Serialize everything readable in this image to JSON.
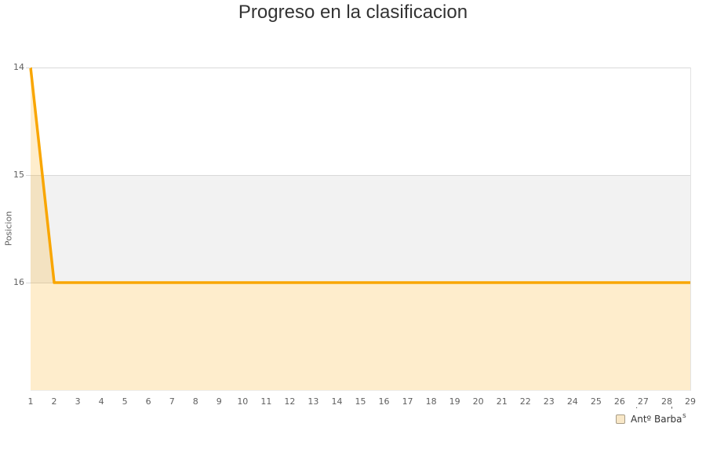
{
  "header": {
    "title": "Progreso en la clasificacion"
  },
  "chart_data": {
    "type": "area",
    "title": "Progreso en la clasificacion",
    "xlabel": "",
    "ylabel": "Posicion",
    "x": [
      1,
      2,
      3,
      4,
      5,
      6,
      7,
      8,
      9,
      10,
      11,
      12,
      13,
      14,
      15,
      16,
      17,
      18,
      19,
      20,
      21,
      22,
      23,
      24,
      25,
      26,
      27,
      28,
      29
    ],
    "series": [
      {
        "name": "Antº Barba",
        "values": [
          14,
          16,
          16,
          16,
          16,
          16,
          16,
          16,
          16,
          16,
          16,
          16,
          16,
          16,
          16,
          16,
          16,
          16,
          16,
          16,
          16,
          16,
          16,
          16,
          16,
          16,
          16,
          16,
          16
        ]
      }
    ],
    "ylim": [
      14,
      17
    ],
    "y_ticks": [
      14,
      15,
      16
    ],
    "x_ticks": [
      1,
      2,
      3,
      4,
      5,
      6,
      7,
      8,
      9,
      10,
      11,
      12,
      13,
      14,
      15,
      16,
      17,
      18,
      19,
      20,
      21,
      22,
      23,
      24,
      25,
      26,
      27,
      28,
      29
    ],
    "y_axis_reversed": true,
    "alternate_band": {
      "from": 15,
      "to": 16
    },
    "grid": "horizontal",
    "legend_position": "bottom-right"
  },
  "legend": {
    "label": "Antº Barba",
    "dot_mark": "·",
    "apostrophe_mark": "'",
    "suffix": "s"
  },
  "colors": {
    "line": "#F9A602",
    "area_fill": "#F9A602",
    "area_fill_opacity": "0.2",
    "band": "#F2F2F2",
    "grid": "#D9D9D9",
    "plot_border": "#E3E3E3",
    "axis_text": "#606060",
    "title_text": "#333333",
    "legend_marker_fill": "#F8E7C7",
    "legend_marker_border": "#A79C87"
  }
}
